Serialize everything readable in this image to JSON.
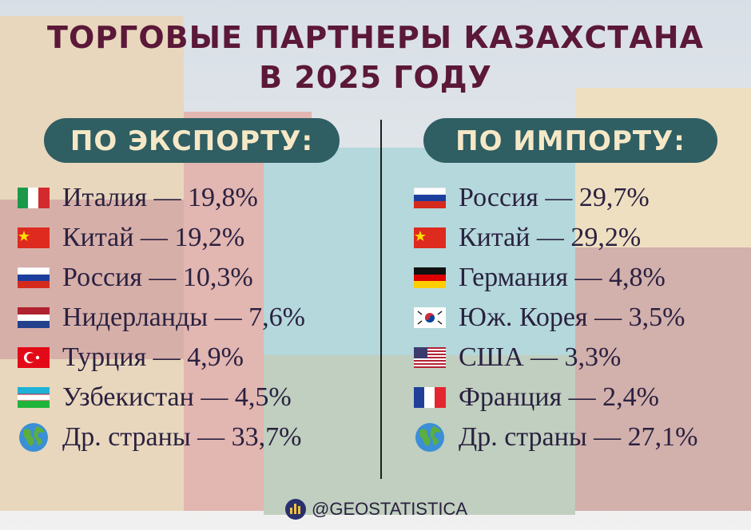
{
  "header": {
    "title_line1": "ТОРГОВЫЕ ПАРТНЕРЫ КАЗАХСТАНА",
    "title_line2": "В 2025 ГОДУ"
  },
  "export": {
    "heading": "ПО ЭКСПОРТУ:",
    "items": [
      "Италия — 19,8%",
      "Китай — 19,2%",
      "Россия — 10,3%",
      "Нидерланды — 7,6%",
      "Турция — 4,9%",
      "Узбекистан — 4,5%",
      "Др. страны — 33,7%"
    ]
  },
  "import": {
    "heading": "ПО ИМПОРТУ:",
    "items": [
      "Россия — 29,7%",
      "Китай — 29,2%",
      "Германия — 4,8%",
      "Юж. Корея — 3,5%",
      "США — 3,3%",
      "Франция — 2,4%",
      "Др. страны — 27,1%"
    ]
  },
  "footer": {
    "handle": "@GEOSTATISTICA"
  }
}
